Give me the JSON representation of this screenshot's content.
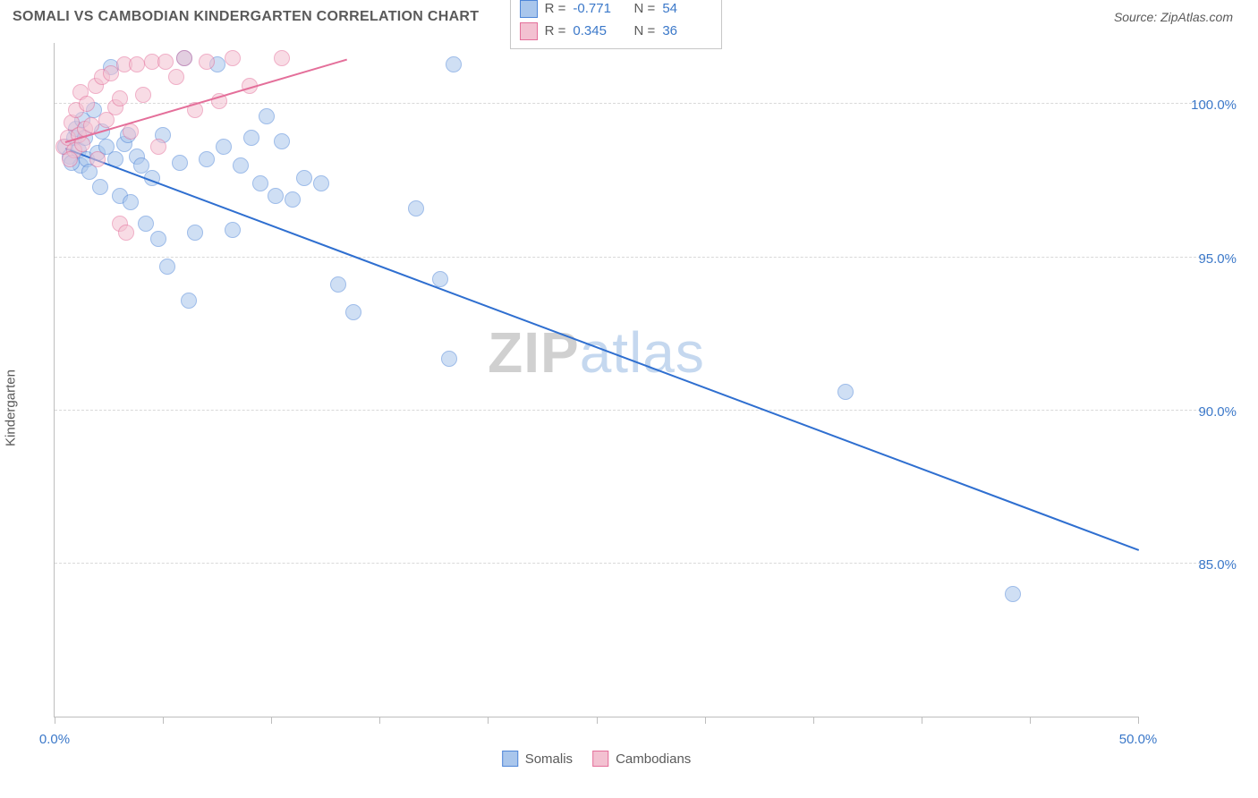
{
  "header": {
    "title": "SOMALI VS CAMBODIAN KINDERGARTEN CORRELATION CHART",
    "source": "Source: ZipAtlas.com"
  },
  "ylabel": "Kindergarten",
  "watermark": {
    "a": "ZIP",
    "b": "atlas"
  },
  "chart": {
    "type": "scatter",
    "xlim": [
      0,
      50
    ],
    "ylim": [
      80,
      102
    ],
    "xticks": [
      0,
      5,
      10,
      15,
      20,
      25,
      30,
      35,
      40,
      45,
      50
    ],
    "xlabels": [
      {
        "x": 0,
        "text": "0.0%"
      },
      {
        "x": 50,
        "text": "50.0%"
      }
    ],
    "yticks": [
      {
        "y": 85,
        "text": "85.0%"
      },
      {
        "y": 90,
        "text": "90.0%"
      },
      {
        "y": 95,
        "text": "95.0%"
      },
      {
        "y": 100,
        "text": "100.0%"
      }
    ],
    "grid_color": "#d9d9d9",
    "axis_color": "#bdbdbd",
    "background_color": "#ffffff",
    "marker_radius": 9,
    "marker_opacity": 0.55,
    "series": [
      {
        "name": "Somalis",
        "color_fill": "#a9c6ec",
        "color_stroke": "#4f86d8",
        "trend": {
          "x1": 0.5,
          "y1": 98.6,
          "x2": 50,
          "y2": 85.5,
          "color": "#2f6fd0",
          "width": 2
        },
        "points": [
          [
            0.5,
            98.6
          ],
          [
            0.7,
            98.3
          ],
          [
            0.9,
            98.9
          ],
          [
            1.0,
            99.2
          ],
          [
            1.1,
            98.5
          ],
          [
            1.2,
            98.0
          ],
          [
            1.3,
            99.5
          ],
          [
            1.5,
            98.2
          ],
          [
            1.6,
            97.8
          ],
          [
            1.8,
            99.8
          ],
          [
            2.0,
            98.4
          ],
          [
            2.1,
            97.3
          ],
          [
            2.4,
            98.6
          ],
          [
            2.6,
            101.2
          ],
          [
            2.8,
            98.2
          ],
          [
            3.0,
            97.0
          ],
          [
            3.2,
            98.7
          ],
          [
            3.5,
            96.8
          ],
          [
            3.8,
            98.3
          ],
          [
            4.0,
            98.0
          ],
          [
            4.2,
            96.1
          ],
          [
            4.5,
            97.6
          ],
          [
            5.0,
            99.0
          ],
          [
            5.2,
            94.7
          ],
          [
            5.8,
            98.1
          ],
          [
            6.0,
            101.5
          ],
          [
            6.2,
            93.6
          ],
          [
            6.5,
            95.8
          ],
          [
            7.0,
            98.2
          ],
          [
            7.5,
            101.3
          ],
          [
            7.8,
            98.6
          ],
          [
            8.2,
            95.9
          ],
          [
            8.6,
            98.0
          ],
          [
            9.1,
            98.9
          ],
          [
            9.5,
            97.4
          ],
          [
            9.8,
            99.6
          ],
          [
            10.2,
            97.0
          ],
          [
            10.5,
            98.8
          ],
          [
            11.0,
            96.9
          ],
          [
            11.5,
            97.6
          ],
          [
            12.3,
            97.4
          ],
          [
            13.1,
            94.1
          ],
          [
            13.8,
            93.2
          ],
          [
            16.7,
            96.6
          ],
          [
            17.8,
            94.3
          ],
          [
            18.4,
            101.3
          ],
          [
            18.2,
            91.7
          ],
          [
            36.5,
            90.6
          ],
          [
            44.2,
            84.0
          ],
          [
            1.4,
            98.9
          ],
          [
            2.2,
            99.1
          ],
          [
            4.8,
            95.6
          ],
          [
            0.8,
            98.1
          ],
          [
            3.4,
            99.0
          ]
        ]
      },
      {
        "name": "Cambodians",
        "color_fill": "#f3c1d1",
        "color_stroke": "#e46f9a",
        "trend": {
          "x1": 0.5,
          "y1": 98.8,
          "x2": 13.5,
          "y2": 101.5,
          "color": "#e46f9a",
          "width": 2
        },
        "points": [
          [
            0.4,
            98.6
          ],
          [
            0.6,
            98.9
          ],
          [
            0.8,
            99.4
          ],
          [
            0.9,
            98.5
          ],
          [
            1.0,
            99.8
          ],
          [
            1.1,
            99.0
          ],
          [
            1.2,
            100.4
          ],
          [
            1.4,
            99.2
          ],
          [
            1.5,
            100.0
          ],
          [
            1.7,
            99.3
          ],
          [
            1.9,
            100.6
          ],
          [
            2.0,
            98.2
          ],
          [
            2.2,
            100.9
          ],
          [
            2.4,
            99.5
          ],
          [
            2.6,
            101.0
          ],
          [
            2.8,
            99.9
          ],
          [
            3.0,
            100.2
          ],
          [
            3.2,
            101.3
          ],
          [
            3.5,
            99.1
          ],
          [
            3.8,
            101.3
          ],
          [
            4.1,
            100.3
          ],
          [
            4.5,
            101.4
          ],
          [
            4.8,
            98.6
          ],
          [
            5.1,
            101.4
          ],
          [
            5.6,
            100.9
          ],
          [
            6.0,
            101.5
          ],
          [
            6.5,
            99.8
          ],
          [
            7.0,
            101.4
          ],
          [
            7.6,
            100.1
          ],
          [
            8.2,
            101.5
          ],
          [
            9.0,
            100.6
          ],
          [
            10.5,
            101.5
          ],
          [
            3.0,
            96.1
          ],
          [
            3.3,
            95.8
          ],
          [
            0.7,
            98.2
          ],
          [
            1.3,
            98.7
          ]
        ]
      }
    ],
    "legend_bottom": [
      {
        "swatch_fill": "#a9c6ec",
        "swatch_stroke": "#4f86d8",
        "label": "Somalis"
      },
      {
        "swatch_fill": "#f3c1d1",
        "swatch_stroke": "#e46f9a",
        "label": "Cambodians"
      }
    ],
    "stats_box": {
      "left_pct": 42,
      "top_y": 101.8,
      "rows": [
        {
          "swatch_fill": "#a9c6ec",
          "swatch_stroke": "#4f86d8",
          "r": "-0.771",
          "n": "54"
        },
        {
          "swatch_fill": "#f3c1d1",
          "swatch_stroke": "#e46f9a",
          "r": "0.345",
          "n": "36"
        }
      ]
    }
  }
}
